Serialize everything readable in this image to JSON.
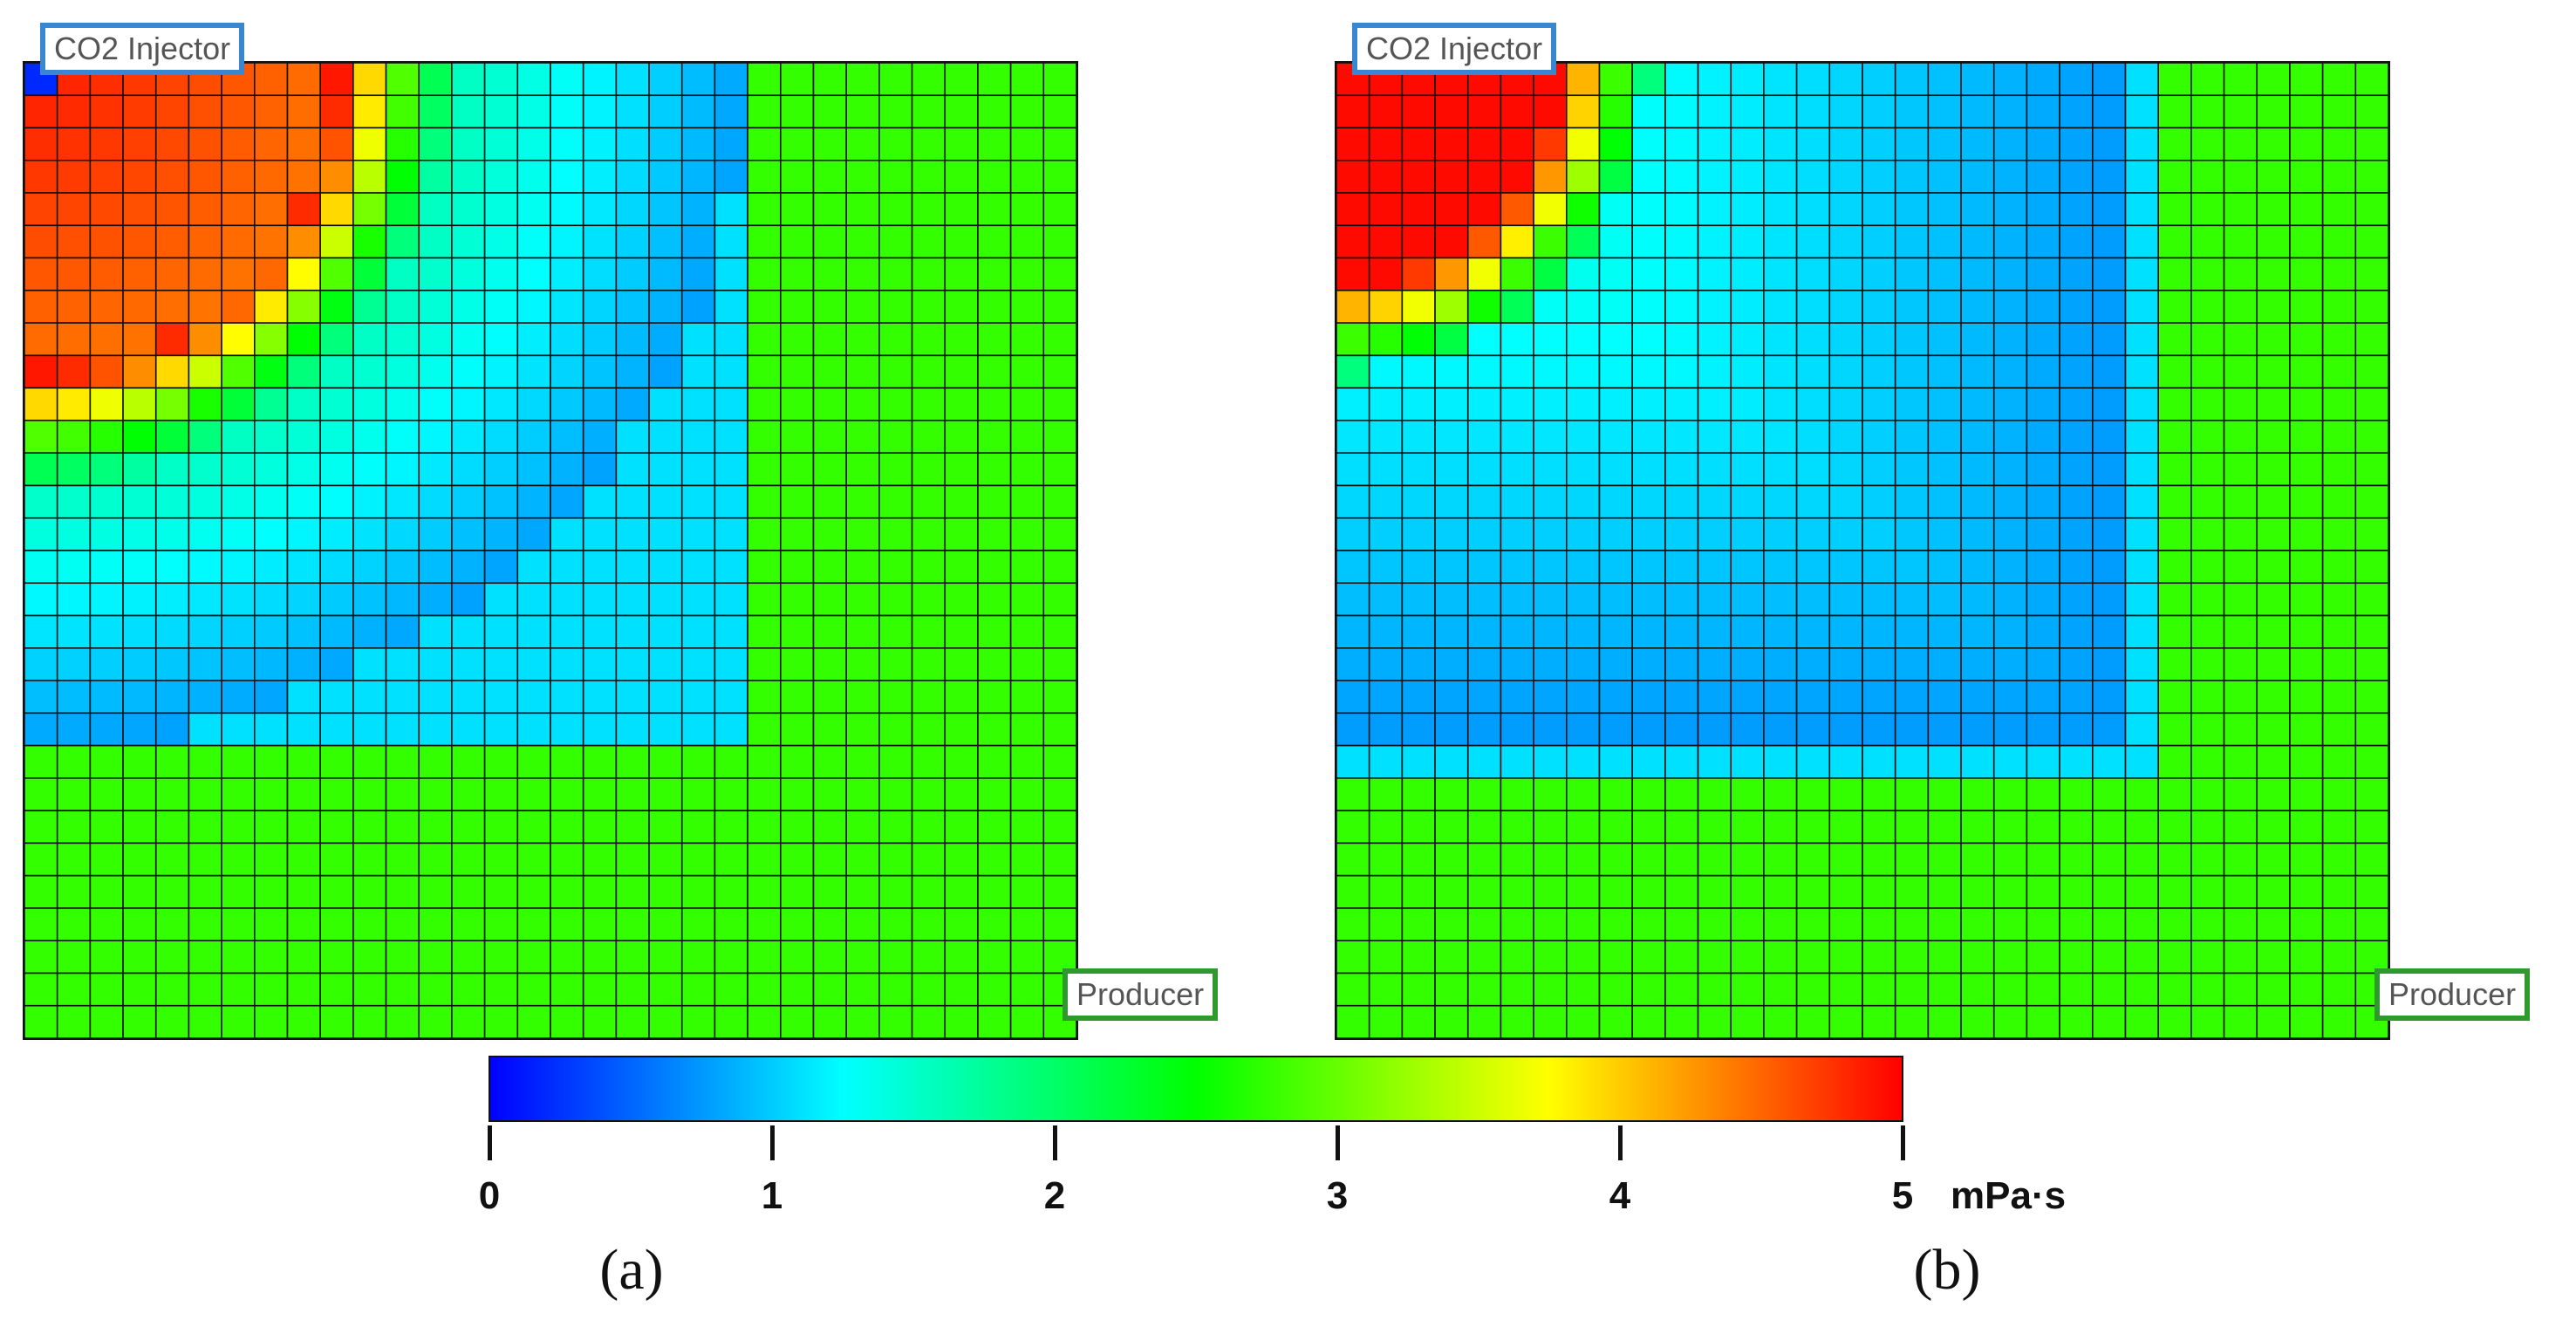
{
  "chart_data": [
    {
      "type": "heatmap",
      "panel_label": "(a)",
      "grid_size": [
        32,
        30
      ],
      "color_range": [
        0,
        5
      ],
      "wells": {
        "injector": "CO2 Injector",
        "producer": "Producer"
      }
    },
    {
      "type": "heatmap",
      "panel_label": "(b)",
      "grid_size": [
        32,
        30
      ],
      "color_range": [
        0,
        5
      ],
      "wells": {
        "injector": "CO2 Injector",
        "producer": "Producer"
      }
    }
  ],
  "colorbar": {
    "ticks": [
      "0",
      "1",
      "2",
      "3",
      "4",
      "5"
    ],
    "unit": "mPa·s",
    "colors": [
      "#0000ff",
      "#00ffff",
      "#00ff00",
      "#ffff00",
      "#ff0000"
    ]
  }
}
